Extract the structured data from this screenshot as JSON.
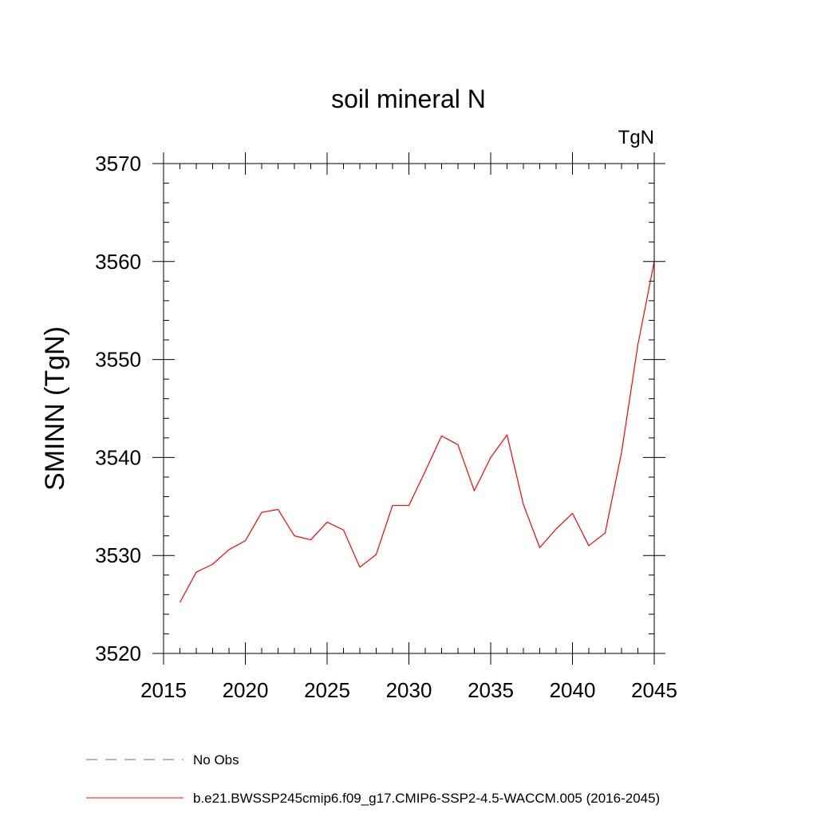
{
  "chart_data": {
    "type": "line",
    "title": "soil mineral N",
    "units_label": "TgN",
    "ylabel": "SMINN  (TgN)",
    "xlabel": "",
    "xlim": [
      2015,
      2045
    ],
    "ylim": [
      3520,
      3570
    ],
    "x_ticks": [
      2015,
      2020,
      2025,
      2030,
      2035,
      2040,
      2045
    ],
    "y_ticks": [
      3520,
      3530,
      3540,
      3550,
      3560,
      3570
    ],
    "x_minor_step": 1,
    "y_minor_step": 2,
    "grid": false,
    "legend_position": "bottom",
    "series": [
      {
        "name": "b.e21.BWSSP245cmip6.f09_g17.CMIP6-SSP2-4.5-WACCM.005 (2016-2045)",
        "color": "#ff0000",
        "style": "solid",
        "x": [
          2016,
          2017,
          2018,
          2019,
          2020,
          2021,
          2022,
          2023,
          2024,
          2025,
          2026,
          2027,
          2028,
          2029,
          2030,
          2031,
          2032,
          2033,
          2034,
          2035,
          2036,
          2037,
          2038,
          2039,
          2040,
          2041,
          2042,
          2043,
          2044,
          2045
        ],
        "values": [
          3525.2,
          3528.3,
          3529.1,
          3530.6,
          3531.5,
          3534.4,
          3534.7,
          3532.0,
          3531.6,
          3533.4,
          3532.6,
          3528.8,
          3530.1,
          3535.1,
          3535.1,
          3538.6,
          3542.2,
          3541.3,
          3536.6,
          3540.0,
          3542.3,
          3535.2,
          3530.8,
          3532.7,
          3534.3,
          3531.0,
          3532.3,
          3540.5,
          3551.5,
          3560.0
        ]
      }
    ],
    "legend": [
      {
        "label": "No Obs",
        "color": "#6a6ab0",
        "style": "dashed"
      },
      {
        "label": "b.e21.BWSSP245cmip6.f09_g17.CMIP6-SSP2-4.5-WACCM.005 (2016-2045)",
        "color": "#ff0000",
        "style": "solid"
      }
    ]
  }
}
